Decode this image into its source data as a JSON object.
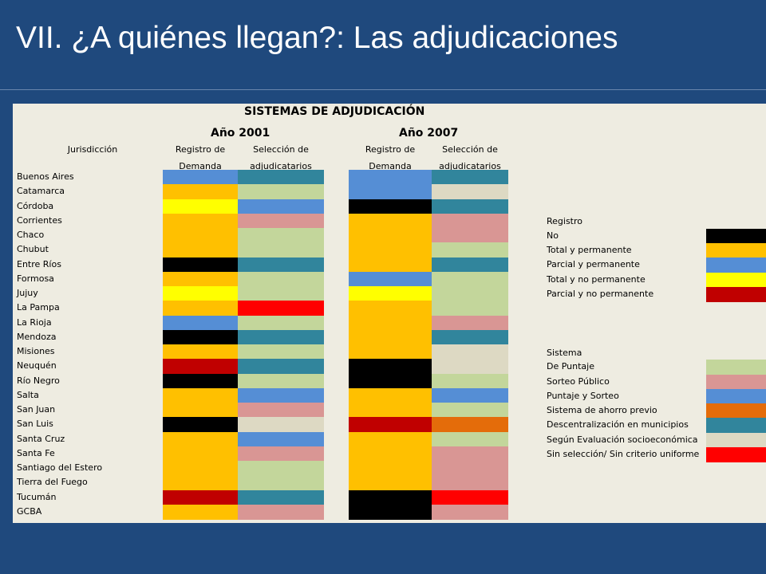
{
  "title": "VII. ¿A quiénes llegan?: Las adjudicaciones",
  "table": {
    "heading": "SISTEMAS DE ADJUDICACIÓN",
    "year_a": "Año 2001",
    "year_b": "Año 2007",
    "col_jurisdiccion": "Jurisdicción",
    "col_registro_l1": "Registro de",
    "col_registro_l2": "Demanda",
    "col_seleccion_l1": "Selección de",
    "col_seleccion_l2": "adjudicatarios",
    "rows": [
      {
        "name": "Buenos Aires",
        "reg2001": "Parcial y permanente",
        "sel2001": "Descentralización en municipios",
        "reg2007": "Parcial y permanente",
        "sel2007": "Descentralización en municipios"
      },
      {
        "name": "Catamarca",
        "reg2001": "Total y permanente",
        "sel2001": "De Puntaje",
        "reg2007": "Parcial y permanente",
        "sel2007": "Según Evaluación socioeconómica"
      },
      {
        "name": "Córdoba",
        "reg2001": "Total y no permanente",
        "sel2001": "Puntaje y Sorteo",
        "reg2007": "No",
        "sel2007": "Descentralización en municipios"
      },
      {
        "name": "Corrientes",
        "reg2001": "Total y permanente",
        "sel2001": "Sorteo Público",
        "reg2007": "Total y permanente",
        "sel2007": "Sorteo Público"
      },
      {
        "name": "Chaco",
        "reg2001": "Total y permanente",
        "sel2001": "De Puntaje",
        "reg2007": "Total y permanente",
        "sel2007": "Sorteo Público"
      },
      {
        "name": "Chubut",
        "reg2001": "Total y permanente",
        "sel2001": "De Puntaje",
        "reg2007": "Total y permanente",
        "sel2007": "De Puntaje"
      },
      {
        "name": "Entre Ríos",
        "reg2001": "No",
        "sel2001": "Descentralización en municipios",
        "reg2007": "Total y permanente",
        "sel2007": "Descentralización en municipios"
      },
      {
        "name": "Formosa",
        "reg2001": "Total y permanente",
        "sel2001": "De Puntaje",
        "reg2007": "Parcial y permanente",
        "sel2007": "De Puntaje"
      },
      {
        "name": "Jujuy",
        "reg2001": "Total y no permanente",
        "sel2001": "De Puntaje",
        "reg2007": "Total y no permanente",
        "sel2007": "De Puntaje"
      },
      {
        "name": "La Pampa",
        "reg2001": "Total y permanente",
        "sel2001": "Sin selección/ Sin criterio uniforme",
        "reg2007": "Total y permanente",
        "sel2007": "De Puntaje"
      },
      {
        "name": "La Rioja",
        "reg2001": "Parcial y permanente",
        "sel2001": "De Puntaje",
        "reg2007": "Total y permanente",
        "sel2007": "Sorteo Público"
      },
      {
        "name": "Mendoza",
        "reg2001": "No",
        "sel2001": "Descentralización en municipios",
        "reg2007": "Total y permanente",
        "sel2007": "Descentralización en municipios"
      },
      {
        "name": "Misiones",
        "reg2001": "Total y permanente",
        "sel2001": "De Puntaje",
        "reg2007": "Total y permanente",
        "sel2007": "Según Evaluación socioeconómica"
      },
      {
        "name": "Neuquén",
        "reg2001": "Parcial y no permanente",
        "sel2001": "Descentralización en municipios",
        "reg2007": "No",
        "sel2007": "Según Evaluación socioeconómica"
      },
      {
        "name": "Río Negro",
        "reg2001": "No",
        "sel2001": "De Puntaje",
        "reg2007": "No",
        "sel2007": "De Puntaje"
      },
      {
        "name": "Salta",
        "reg2001": "Total y permanente",
        "sel2001": "Puntaje y Sorteo",
        "reg2007": "Total y permanente",
        "sel2007": "Puntaje y Sorteo"
      },
      {
        "name": "San Juan",
        "reg2001": "Total y permanente",
        "sel2001": "Sorteo Público",
        "reg2007": "Total y permanente",
        "sel2007": "De Puntaje"
      },
      {
        "name": "San Luis",
        "reg2001": "No",
        "sel2001": "Según Evaluación socioeconómica",
        "reg2007": "Parcial y no permanente",
        "sel2007": "Sistema de ahorro previo"
      },
      {
        "name": "Santa Cruz",
        "reg2001": "Total y permanente",
        "sel2001": "Puntaje y Sorteo",
        "reg2007": "Total y permanente",
        "sel2007": "De Puntaje"
      },
      {
        "name": "Santa Fe",
        "reg2001": "Total y permanente",
        "sel2001": "Sorteo Público",
        "reg2007": "Total y permanente",
        "sel2007": "Sorteo Público"
      },
      {
        "name": "Santiago del Estero",
        "reg2001": "Total y permanente",
        "sel2001": "De Puntaje",
        "reg2007": "Total y permanente",
        "sel2007": "Sorteo Público"
      },
      {
        "name": "Tierra del Fuego",
        "reg2001": "Total y permanente",
        "sel2001": "De Puntaje",
        "reg2007": "Total y permanente",
        "sel2007": "Sorteo Público"
      },
      {
        "name": "Tucumán",
        "reg2001": "Parcial y no permanente",
        "sel2001": "Descentralización en municipios",
        "reg2007": "No",
        "sel2007": "Sin selección/ Sin criterio uniforme"
      },
      {
        "name": "GCBA",
        "reg2001": "Total y permanente",
        "sel2001": "Sorteo Público",
        "reg2007": "No",
        "sel2007": "Sorteo Público"
      }
    ]
  },
  "legend": {
    "registro_title": "Registro",
    "registro": [
      {
        "label": "No",
        "color": "#000000"
      },
      {
        "label": "Total y permanente",
        "color": "#ffc000"
      },
      {
        "label": "Parcial y permanente",
        "color": "#558ed5"
      },
      {
        "label": "Total y no permanente",
        "color": "#ffff00"
      },
      {
        "label": "Parcial y no permanente",
        "color": "#c00000"
      }
    ],
    "sistema_title": "Sistema",
    "sistema": [
      {
        "label": "De Puntaje",
        "color": "#c3d69b"
      },
      {
        "label": "Sorteo Público",
        "color": "#d99694"
      },
      {
        "label": "Puntaje y Sorteo",
        "color": "#558ed5"
      },
      {
        "label": "Sistema de ahorro previo",
        "color": "#e46c0a"
      },
      {
        "label": "Descentralización en municipios",
        "color": "#31859c"
      },
      {
        "label": "Según Evaluación socioeconómica",
        "color": "#ddd9c3"
      },
      {
        "label": "Sin selección/ Sin criterio uniforme",
        "color": "#ff0000"
      }
    ]
  }
}
